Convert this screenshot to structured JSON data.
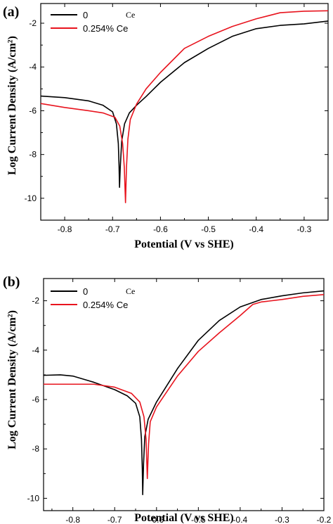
{
  "chart_data": [
    {
      "type": "line",
      "panel_label": "(a)",
      "xlabel": "Potential (V vs SHE)",
      "ylabel": "Log Current Density (A/cm²)",
      "xlim": [
        -0.85,
        -0.25
      ],
      "ylim": [
        -11.0,
        -1.1
      ],
      "x_ticks": [
        -0.8,
        -0.7,
        -0.6,
        -0.5,
        -0.4,
        -0.3
      ],
      "x_tick_labels": [
        "-0.8",
        "-0.7",
        "-0.6",
        "-0.5",
        "-0.4",
        "-0.3"
      ],
      "y_ticks": [
        -10,
        -8,
        -6,
        -4,
        -2
      ],
      "y_tick_labels": [
        "-10",
        "-8",
        "-6",
        "-4",
        "-2"
      ],
      "legend_position": "top-left",
      "series": [
        {
          "name": "0",
          "name_suffix": "Ce",
          "color": "#000000",
          "points": [
            [
              -0.85,
              -5.33
            ],
            [
              -0.8,
              -5.4
            ],
            [
              -0.75,
              -5.55
            ],
            [
              -0.72,
              -5.75
            ],
            [
              -0.7,
              -6.05
            ],
            [
              -0.692,
              -6.6
            ],
            [
              -0.688,
              -7.5
            ],
            [
              -0.6865,
              -8.5
            ],
            [
              -0.6855,
              -9.5
            ],
            [
              -0.684,
              -8.6
            ],
            [
              -0.681,
              -7.4
            ],
            [
              -0.675,
              -6.6
            ],
            [
              -0.665,
              -6.1
            ],
            [
              -0.65,
              -5.75
            ],
            [
              -0.63,
              -5.35
            ],
            [
              -0.6,
              -4.7
            ],
            [
              -0.55,
              -3.8
            ],
            [
              -0.5,
              -3.15
            ],
            [
              -0.45,
              -2.6
            ],
            [
              -0.4,
              -2.25
            ],
            [
              -0.35,
              -2.1
            ],
            [
              -0.3,
              -2.03
            ],
            [
              -0.25,
              -1.9
            ]
          ]
        },
        {
          "name": "0.254% Ce",
          "color": "#e8141e",
          "points": [
            [
              -0.85,
              -5.67
            ],
            [
              -0.8,
              -5.85
            ],
            [
              -0.75,
              -6.0
            ],
            [
              -0.72,
              -6.1
            ],
            [
              -0.695,
              -6.3
            ],
            [
              -0.685,
              -6.7
            ],
            [
              -0.679,
              -7.5
            ],
            [
              -0.6755,
              -8.6
            ],
            [
              -0.673,
              -10.2
            ],
            [
              -0.671,
              -8.6
            ],
            [
              -0.668,
              -7.3
            ],
            [
              -0.663,
              -6.4
            ],
            [
              -0.65,
              -5.7
            ],
            [
              -0.63,
              -5.0
            ],
            [
              -0.6,
              -4.25
            ],
            [
              -0.55,
              -3.15
            ],
            [
              -0.5,
              -2.6
            ],
            [
              -0.45,
              -2.15
            ],
            [
              -0.4,
              -1.8
            ],
            [
              -0.35,
              -1.52
            ],
            [
              -0.3,
              -1.45
            ],
            [
              -0.25,
              -1.43
            ]
          ]
        }
      ]
    },
    {
      "type": "line",
      "panel_label": "(b)",
      "xlabel": "Potential (V vs SHE)",
      "ylabel": "Log Current Density (A/cm²)",
      "xlim": [
        -0.87,
        -0.2
      ],
      "ylim": [
        -10.5,
        -1.1
      ],
      "x_ticks": [
        -0.8,
        -0.7,
        -0.6,
        -0.5,
        -0.4,
        -0.3,
        -0.2
      ],
      "x_tick_labels": [
        "-0.8",
        "-0.7",
        "-0.6",
        "-0.5",
        "-0.4",
        "-0.3",
        "-0.2"
      ],
      "y_ticks": [
        -10,
        -8,
        -6,
        -4,
        -2
      ],
      "y_tick_labels": [
        "-10",
        "-8",
        "-6",
        "-4",
        "-2"
      ],
      "legend_position": "top-left",
      "series": [
        {
          "name": "0",
          "name_suffix": "Ce",
          "color": "#000000",
          "points": [
            [
              -0.87,
              -5.02
            ],
            [
              -0.83,
              -5.0
            ],
            [
              -0.8,
              -5.05
            ],
            [
              -0.75,
              -5.3
            ],
            [
              -0.7,
              -5.6
            ],
            [
              -0.67,
              -5.85
            ],
            [
              -0.65,
              -6.15
            ],
            [
              -0.64,
              -6.7
            ],
            [
              -0.636,
              -7.6
            ],
            [
              -0.634,
              -8.8
            ],
            [
              -0.633,
              -9.85
            ],
            [
              -0.631,
              -8.6
            ],
            [
              -0.628,
              -7.5
            ],
            [
              -0.62,
              -6.8
            ],
            [
              -0.6,
              -6.1
            ],
            [
              -0.55,
              -4.75
            ],
            [
              -0.5,
              -3.6
            ],
            [
              -0.45,
              -2.8
            ],
            [
              -0.4,
              -2.25
            ],
            [
              -0.35,
              -1.95
            ],
            [
              -0.3,
              -1.8
            ],
            [
              -0.25,
              -1.68
            ],
            [
              -0.2,
              -1.6
            ]
          ]
        },
        {
          "name": "0.254% Ce",
          "color": "#e8141e",
          "points": [
            [
              -0.87,
              -5.38
            ],
            [
              -0.8,
              -5.38
            ],
            [
              -0.75,
              -5.38
            ],
            [
              -0.7,
              -5.5
            ],
            [
              -0.66,
              -5.75
            ],
            [
              -0.64,
              -6.1
            ],
            [
              -0.63,
              -6.7
            ],
            [
              -0.625,
              -7.6
            ],
            [
              -0.622,
              -9.2
            ],
            [
              -0.619,
              -7.8
            ],
            [
              -0.615,
              -6.9
            ],
            [
              -0.6,
              -6.3
            ],
            [
              -0.55,
              -5.05
            ],
            [
              -0.5,
              -4.05
            ],
            [
              -0.45,
              -3.3
            ],
            [
              -0.4,
              -2.6
            ],
            [
              -0.37,
              -2.15
            ],
            [
              -0.35,
              -2.05
            ],
            [
              -0.3,
              -1.95
            ],
            [
              -0.25,
              -1.82
            ],
            [
              -0.2,
              -1.75
            ]
          ]
        }
      ]
    }
  ]
}
